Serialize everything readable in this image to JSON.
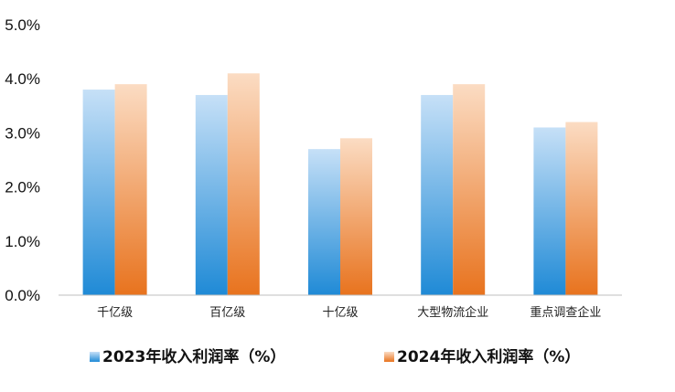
{
  "chart_data": {
    "type": "bar",
    "categories": [
      "千亿级",
      "百亿级",
      "十亿级",
      "大型物流企业",
      "重点调查企业"
    ],
    "series": [
      {
        "name": "2023年收入利润率（%）",
        "values": [
          3.8,
          3.7,
          2.7,
          3.7,
          3.1
        ],
        "color_top": "#c6e0f7",
        "color_bottom": "#1f8ad6"
      },
      {
        "name": "2024年收入利润率（%）",
        "values": [
          3.9,
          4.1,
          2.9,
          3.9,
          3.2
        ],
        "color_top": "#fbdcc3",
        "color_bottom": "#e8731e"
      }
    ],
    "ylim": [
      0,
      5
    ],
    "yticks": [
      "0.0%",
      "1.0%",
      "2.0%",
      "3.0%",
      "4.0%",
      "5.0%"
    ],
    "grid": false,
    "legend": "bottom"
  }
}
